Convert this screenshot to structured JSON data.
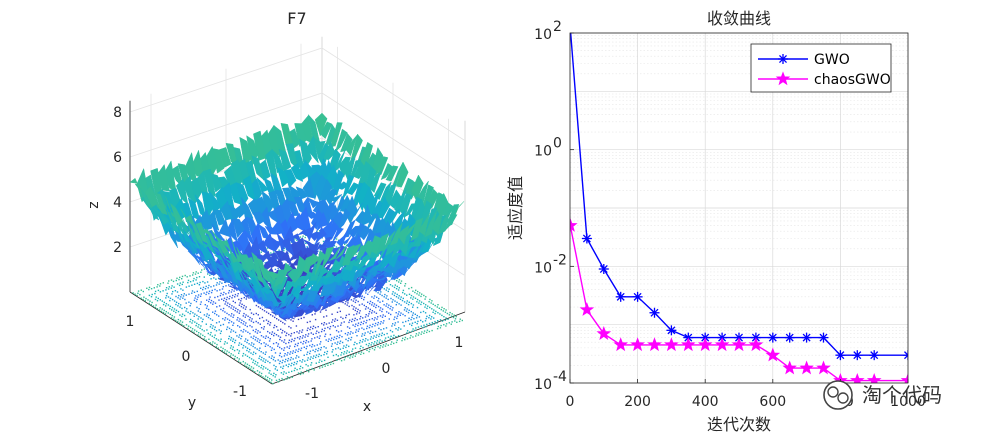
{
  "chart_data": [
    {
      "type": "surface",
      "title": "F7",
      "xlabel": "x",
      "ylabel": "y",
      "zlabel": "z",
      "xticks": [
        "-1",
        "0",
        "1"
      ],
      "yticks": [
        "-1",
        "0",
        "1"
      ],
      "zticks": [
        "2",
        "4",
        "6",
        "8"
      ],
      "xlim": [
        -1.28,
        1.28
      ],
      "ylim": [
        -1.28,
        1.28
      ],
      "zlim": [
        0,
        8.5
      ],
      "colormap": [
        "#3e26a8",
        "#2f72f8",
        "#12b2c6",
        "#3fc28a",
        "#bdbb2c",
        "#f9d329"
      ]
    },
    {
      "type": "line",
      "title": "收敛曲线",
      "xlabel": "迭代次数",
      "ylabel": "适应度值",
      "yscale": "log",
      "xlim": [
        0,
        1000
      ],
      "ylim": [
        0.0001,
        100
      ],
      "xticks": [
        "0",
        "200",
        "400",
        "600",
        "800",
        "1000"
      ],
      "yticks": [
        "10^-4",
        "10^-2",
        "10^0",
        "10^2"
      ],
      "legend_position": "top-right",
      "series": [
        {
          "name": "GWO",
          "color": "#0000ff",
          "marker": "asterisk",
          "x": [
            1,
            50,
            100,
            150,
            200,
            250,
            300,
            350,
            400,
            450,
            500,
            550,
            600,
            650,
            700,
            750,
            800,
            850,
            900,
            1000
          ],
          "y": [
            120,
            0.03,
            0.009,
            0.003,
            0.003,
            0.0016,
            0.0008,
            0.0006,
            0.0006,
            0.0006,
            0.0006,
            0.0006,
            0.0006,
            0.0006,
            0.0006,
            0.0006,
            0.0003,
            0.0003,
            0.0003,
            0.0003
          ]
        },
        {
          "name": "chaosGWO",
          "color": "#ff00ff",
          "marker": "pentagram",
          "x": [
            1,
            50,
            100,
            150,
            200,
            250,
            300,
            350,
            400,
            450,
            500,
            550,
            600,
            650,
            700,
            750,
            800,
            850,
            900,
            1000
          ],
          "y": [
            0.05,
            0.0018,
            0.0007,
            0.00045,
            0.00045,
            0.00045,
            0.00045,
            0.00045,
            0.00045,
            0.00045,
            0.00045,
            0.00045,
            0.0003,
            0.00018,
            0.00018,
            0.00018,
            0.00011,
            0.00011,
            0.00011,
            0.00011
          ]
        }
      ]
    }
  ],
  "watermark": "淘个代码"
}
